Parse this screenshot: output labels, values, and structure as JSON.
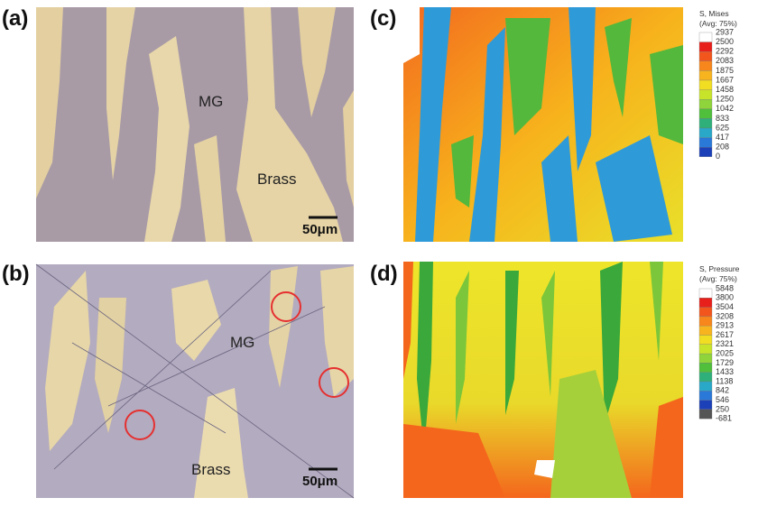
{
  "panel_a": {
    "label": "(a)",
    "phase_labels": [
      "MG",
      "Brass"
    ],
    "scale_bar": "50μm"
  },
  "panel_b": {
    "label": "(b)",
    "phase_labels": [
      "MG",
      "Brass"
    ],
    "scale_bar": "50μm"
  },
  "panel_c": {
    "label": "(c)",
    "legend": {
      "title": "S, Mises",
      "subtitle": "(Avg: 75%)",
      "levels": [
        2937,
        2500,
        2292,
        2083,
        1875,
        1667,
        1458,
        1250,
        1042,
        833,
        625,
        417,
        208,
        0
      ]
    }
  },
  "panel_d": {
    "label": "(d)",
    "legend": {
      "title": "S, Pressure",
      "subtitle": "(Avg: 75%)",
      "levels": [
        5848,
        3800,
        3504,
        3208,
        2913,
        2617,
        2321,
        2025,
        1729,
        1433,
        1138,
        842,
        546,
        250,
        -681
      ]
    }
  }
}
